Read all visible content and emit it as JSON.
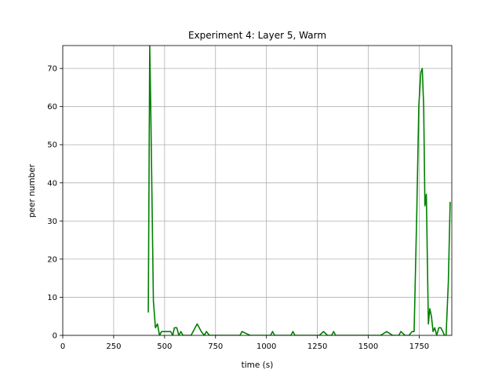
{
  "chart_data": {
    "type": "line",
    "title": "Experiment 4: Layer 5, Warm",
    "xlabel": "time (s)",
    "ylabel": "peer number",
    "xlim": [
      0,
      1910
    ],
    "ylim": [
      0,
      76
    ],
    "xticks": [
      0,
      250,
      500,
      750,
      1000,
      1250,
      1500,
      1750
    ],
    "yticks": [
      0,
      10,
      20,
      30,
      40,
      50,
      60,
      70
    ],
    "grid": true,
    "legend": "none",
    "series": [
      {
        "color": "#008000",
        "points": [
          [
            420,
            6
          ],
          [
            427,
            76
          ],
          [
            432,
            60
          ],
          [
            445,
            9
          ],
          [
            455,
            2
          ],
          [
            465,
            3
          ],
          [
            475,
            0
          ],
          [
            485,
            1
          ],
          [
            510,
            1
          ],
          [
            530,
            1
          ],
          [
            540,
            0
          ],
          [
            548,
            2
          ],
          [
            560,
            2
          ],
          [
            570,
            0
          ],
          [
            580,
            1
          ],
          [
            590,
            0
          ],
          [
            600,
            0
          ],
          [
            630,
            0
          ],
          [
            660,
            3
          ],
          [
            670,
            2
          ],
          [
            680,
            1
          ],
          [
            695,
            0
          ],
          [
            705,
            1
          ],
          [
            720,
            0
          ],
          [
            740,
            0
          ],
          [
            870,
            0
          ],
          [
            880,
            1
          ],
          [
            900,
            0.5
          ],
          [
            920,
            0
          ],
          [
            1020,
            0
          ],
          [
            1030,
            1
          ],
          [
            1040,
            0
          ],
          [
            1120,
            0
          ],
          [
            1130,
            1
          ],
          [
            1140,
            0
          ],
          [
            1260,
            0
          ],
          [
            1280,
            1
          ],
          [
            1300,
            0
          ],
          [
            1320,
            0
          ],
          [
            1330,
            1
          ],
          [
            1340,
            0
          ],
          [
            1560,
            0
          ],
          [
            1590,
            1
          ],
          [
            1620,
            0
          ],
          [
            1650,
            0
          ],
          [
            1660,
            1
          ],
          [
            1680,
            0
          ],
          [
            1700,
            0
          ],
          [
            1715,
            1
          ],
          [
            1725,
            1
          ],
          [
            1738,
            32
          ],
          [
            1748,
            60
          ],
          [
            1758,
            69
          ],
          [
            1765,
            70
          ],
          [
            1772,
            60
          ],
          [
            1778,
            34
          ],
          [
            1785,
            37
          ],
          [
            1795,
            3
          ],
          [
            1802,
            7
          ],
          [
            1810,
            5
          ],
          [
            1818,
            1
          ],
          [
            1826,
            2
          ],
          [
            1836,
            0
          ],
          [
            1846,
            2
          ],
          [
            1856,
            2
          ],
          [
            1866,
            1
          ],
          [
            1874,
            0
          ],
          [
            1882,
            0
          ],
          [
            1893,
            14
          ],
          [
            1902,
            35
          ]
        ]
      }
    ]
  }
}
